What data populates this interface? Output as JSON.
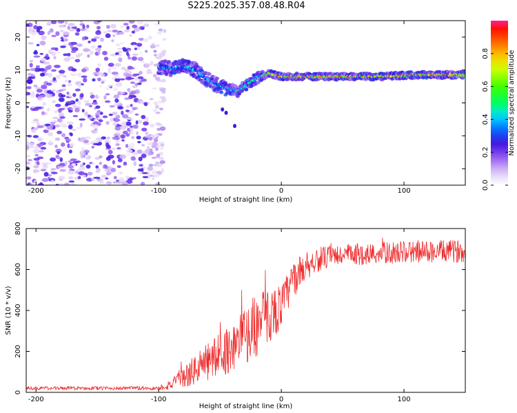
{
  "chart_data": [
    {
      "type": "heatmap",
      "title": "S225.2025.357.08.48.R04",
      "xlabel": "Height of straight line (km)",
      "ylabel": "Frequency (Hz)",
      "xlim": [
        -208,
        150
      ],
      "ylim": [
        -25,
        25
      ],
      "xticks": [
        -200,
        -100,
        0,
        100
      ],
      "xtick_labels": [
        "-200",
        "-100",
        "0",
        "100"
      ],
      "yticks": [
        -20,
        -10,
        0,
        10,
        20
      ],
      "ytick_labels": [
        "-20",
        "-10",
        "0",
        "10",
        "20"
      ],
      "colorbar": {
        "label": "Normalized spectral amplitude",
        "range": [
          0,
          1
        ],
        "ticks": [
          0.0,
          0.2,
          0.4,
          0.6,
          0.8
        ],
        "tick_labels": [
          "0.0",
          "0.2",
          "0.4",
          "0.6",
          "0.8"
        ]
      },
      "noise_region": {
        "x": [
          -208,
          -95
        ],
        "frequency": [
          -25,
          25
        ],
        "amplitude": 0.1
      },
      "signal_ridge": {
        "height_km": [
          -100,
          -90,
          -80,
          -70,
          -60,
          -50,
          -40,
          -35,
          -30,
          -20,
          -10,
          0,
          20,
          50,
          80,
          110,
          150
        ],
        "frequency_hz": [
          11,
          10.5,
          11,
          10,
          7,
          5,
          4,
          3.5,
          5,
          7.5,
          9,
          8,
          8,
          8,
          8,
          8.5,
          8.5
        ]
      }
    },
    {
      "type": "line",
      "xlabel": "Height of straight line (km)",
      "ylabel": "SNR (10 * v/v)",
      "xlim": [
        -208,
        150
      ],
      "ylim": [
        0,
        800
      ],
      "xticks": [
        -200,
        -100,
        0,
        100
      ],
      "xtick_labels": [
        "-200",
        "-100",
        "0",
        "100"
      ],
      "yticks": [
        0,
        200,
        400,
        600,
        800
      ],
      "ytick_labels": [
        "0",
        "200",
        "400",
        "600",
        "800"
      ],
      "color": "#ee2b2b",
      "trend": {
        "x": [
          -208,
          -100,
          -85,
          -60,
          -40,
          -20,
          0,
          10,
          20,
          30,
          50,
          100,
          150
        ],
        "y": [
          20,
          20,
          50,
          150,
          220,
          330,
          420,
          550,
          620,
          650,
          670,
          685,
          690
        ]
      },
      "noise_amplitude": {
        "x": [
          -208,
          -100,
          -85,
          -60,
          -40,
          -20,
          0,
          20,
          40,
          150
        ],
        "y": [
          8,
          10,
          40,
          100,
          120,
          160,
          110,
          70,
          55,
          55
        ]
      }
    }
  ]
}
